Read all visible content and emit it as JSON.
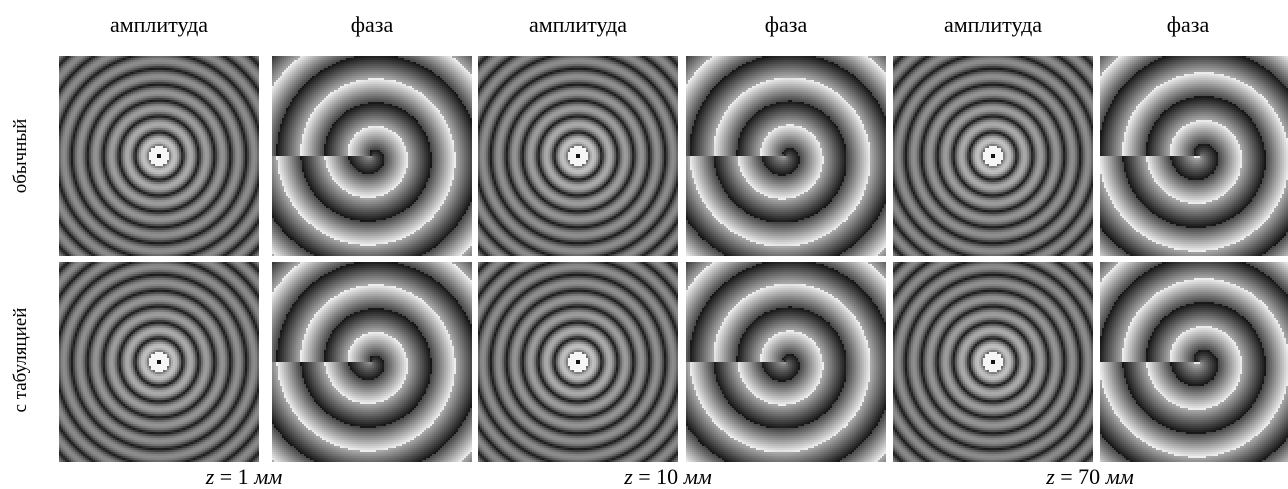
{
  "headers": [
    "амплитуда",
    "фаза",
    "амплитуда",
    "фаза",
    "амплитуда",
    "фаза"
  ],
  "rows": [
    "обычный",
    "с табуляцией"
  ],
  "z_labels": [
    {
      "var": "z",
      "eq": " = 1 ",
      "unit": "мм"
    },
    {
      "var": "z",
      "eq": " = 10 ",
      "unit": "мм"
    },
    {
      "var": "z",
      "eq": " = 70 ",
      "unit": "мм"
    }
  ],
  "panels": [
    {
      "type": "amplitude",
      "rings": 6
    },
    {
      "type": "phase",
      "twist": 0.0
    },
    {
      "type": "amplitude",
      "rings": 6
    },
    {
      "type": "phase",
      "twist": 0.35
    },
    {
      "type": "amplitude",
      "rings": 6
    },
    {
      "type": "phase",
      "twist": 1.6
    }
  ]
}
